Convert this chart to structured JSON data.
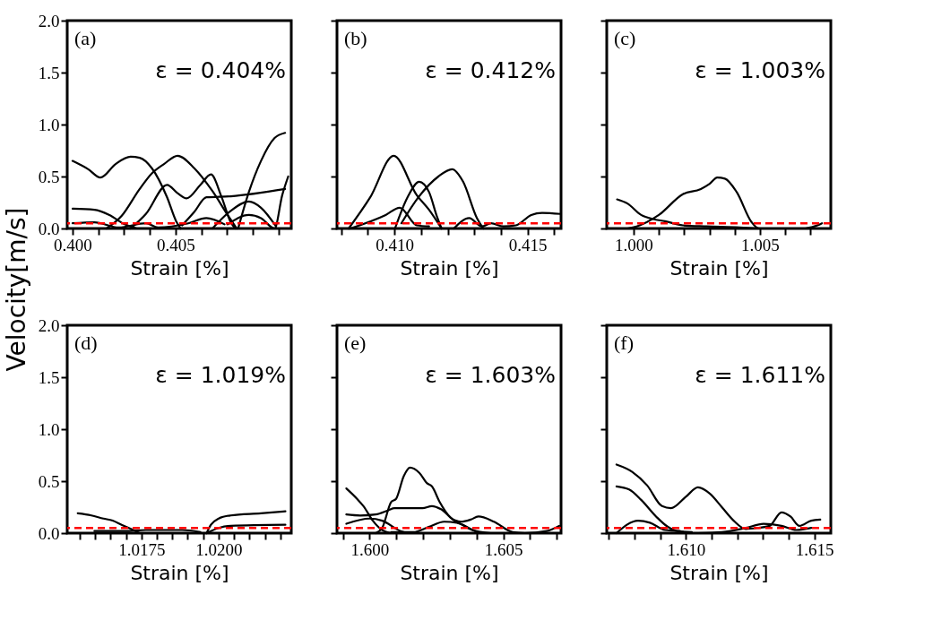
{
  "chart_data": [
    {
      "type": "line",
      "xlabel": "Strain [%]",
      "ylabel": "Velocity[m/s]",
      "annotations": [
        "(a)",
        "ε = 0.404%"
      ],
      "xlim": [
        0.39974,
        0.41062
      ],
      "ylim": [
        0,
        2.0
      ],
      "xticks": [
        {
          "value": 0.4,
          "label": "0.400"
        },
        {
          "value": 0.40125,
          "label": null
        },
        {
          "value": 0.4025,
          "label": null
        },
        {
          "value": 0.40375,
          "label": null
        },
        {
          "value": 0.405,
          "label": "0.405"
        },
        {
          "value": 0.40625,
          "label": null
        },
        {
          "value": 0.4075,
          "label": null
        },
        {
          "value": 0.40875,
          "label": null
        },
        {
          "value": 0.41,
          "label": null
        }
      ],
      "yticks": [
        {
          "value": 0,
          "label": "0.0"
        },
        {
          "value": 0.5,
          "label": "0.5"
        },
        {
          "value": 1.0,
          "label": "1.0"
        },
        {
          "value": 1.5,
          "label": "1.5"
        },
        {
          "value": 2.0,
          "label": "2.0"
        }
      ],
      "ref_lines": [
        {
          "axis": "y",
          "value": 0.05,
          "color": "#ff0000",
          "line_style": "dashed"
        }
      ],
      "series": [
        {
          "color": "#000000",
          "x": [
            0.4,
            0.40076,
            0.40135,
            0.40209,
            0.40282,
            0.40326,
            0.40385,
            0.40459,
            0.40503,
            0.40525
          ],
          "values": [
            0.65,
            0.57,
            0.49,
            0.62,
            0.69,
            0.68,
            0.58,
            0.3,
            0.07,
            0.0
          ]
        },
        {
          "color": "#000000",
          "x": [
            0.40165,
            0.40238,
            0.40326,
            0.40385,
            0.40444,
            0.4051,
            0.40591,
            0.40679,
            0.40753,
            0.40797
          ],
          "values": [
            0.0,
            0.12,
            0.38,
            0.53,
            0.62,
            0.7,
            0.58,
            0.36,
            0.13,
            0.0
          ]
        },
        {
          "color": "#000000",
          "x": [
            0.40282,
            0.40356,
            0.40459,
            0.4051,
            0.40554,
            0.40621,
            0.40672,
            0.40724,
            0.40768,
            0.4079
          ],
          "values": [
            0.0,
            0.14,
            0.42,
            0.34,
            0.29,
            0.42,
            0.52,
            0.3,
            0.06,
            0.0
          ]
        },
        {
          "color": "#000000",
          "x": [
            0.40804,
            0.40856,
            0.40915,
            0.40981,
            0.41032
          ],
          "values": [
            0.0,
            0.35,
            0.65,
            0.87,
            0.92
          ]
        },
        {
          "color": "#000000",
          "x": [
            0.40532,
            0.40591,
            0.4065,
            0.40768,
            0.41032
          ],
          "values": [
            0.03,
            0.16,
            0.3,
            0.31,
            0.38
          ]
        },
        {
          "color": "#000000",
          "x": [
            0.4,
            0.40106,
            0.40179,
            0.40253,
            0.40312
          ],
          "values": [
            0.19,
            0.18,
            0.13,
            0.04,
            0.0
          ]
        },
        {
          "color": "#000000",
          "x": [
            0.40679,
            0.40768,
            0.40856,
            0.40915,
            0.40988
          ],
          "values": [
            0.0,
            0.17,
            0.26,
            0.2,
            0.02
          ]
        },
        {
          "color": "#000000",
          "x": [
            0.40753,
            0.40856,
            0.40915,
            0.40981,
            0.41018,
            0.41047
          ],
          "values": [
            0.04,
            0.13,
            0.1,
            0.0,
            0.32,
            0.5
          ]
        },
        {
          "color": "#000000",
          "x": [
            0.4,
            0.40106,
            0.40224,
            0.40356,
            0.40415,
            0.40562,
            0.4065,
            0.40738
          ],
          "values": [
            0.05,
            0.06,
            0.01,
            0.05,
            0.01,
            0.05,
            0.1,
            0.04
          ]
        }
      ]
    },
    {
      "type": "line",
      "xlabel": "Strain [%]",
      "annotations": [
        "(b)",
        "ε = 0.412%"
      ],
      "tick_labels": "x",
      "xlim": [
        0.40784,
        0.41626
      ],
      "ylim": [
        0,
        2.0
      ],
      "xticks": [
        {
          "value": 0.408,
          "label": null
        },
        {
          "value": 0.409,
          "label": null
        },
        {
          "value": 0.41,
          "label": "0.410"
        },
        {
          "value": 0.411,
          "label": null
        },
        {
          "value": 0.412,
          "label": null
        },
        {
          "value": 0.413,
          "label": null
        },
        {
          "value": 0.414,
          "label": null
        },
        {
          "value": 0.415,
          "label": "0.415"
        },
        {
          "value": 0.416,
          "label": null
        }
      ],
      "yticks": [
        {
          "value": 0,
          "label": null
        },
        {
          "value": 0.5,
          "label": null
        },
        {
          "value": 1.0,
          "label": null
        },
        {
          "value": 1.5,
          "label": null
        },
        {
          "value": 2.0,
          "label": null
        }
      ],
      "ref_lines": [
        {
          "axis": "y",
          "value": 0.05,
          "color": "#ff0000",
          "line_style": "dashed"
        }
      ],
      "series": [
        {
          "color": "#000000",
          "x": [
            0.40828,
            0.40909,
            0.40997,
            0.41084,
            0.4113,
            0.41177
          ],
          "values": [
            0.0,
            0.3,
            0.7,
            0.32,
            0.18,
            0.0
          ]
        },
        {
          "color": "#000000",
          "x": [
            0.41002,
            0.41049,
            0.41093,
            0.4113,
            0.41159,
            0.41177
          ],
          "values": [
            0.0,
            0.3,
            0.45,
            0.35,
            0.12,
            0.0
          ]
        },
        {
          "color": "#000000",
          "x": [
            0.41026,
            0.4109,
            0.41165,
            0.41217,
            0.41258,
            0.4131,
            0.41334
          ],
          "values": [
            0.05,
            0.3,
            0.5,
            0.57,
            0.45,
            0.1,
            0.0
          ]
        },
        {
          "color": "#000000",
          "x": [
            0.40834,
            0.40967,
            0.4102,
            0.41084,
            0.4113
          ],
          "values": [
            0.0,
            0.13,
            0.2,
            0.03,
            0.02
          ]
        },
        {
          "color": "#000000",
          "x": [
            0.41223,
            0.41281,
            0.41328,
            0.41363,
            0.41409,
            0.41456,
            0.41514,
            0.41555,
            0.41624
          ],
          "values": [
            0.0,
            0.1,
            0.02,
            0.05,
            0.02,
            0.03,
            0.13,
            0.15,
            0.14
          ]
        }
      ]
    },
    {
      "type": "line",
      "xlabel": "Strain [%]",
      "annotations": [
        "(c)",
        "ε = 1.003%"
      ],
      "tick_labels": "x",
      "xlim": [
        0.99894,
        1.0078
      ],
      "ylim": [
        0,
        2.0
      ],
      "xticks": [
        {
          "value": 1.0,
          "label": "1.000"
        },
        {
          "value": 1.001,
          "label": null
        },
        {
          "value": 1.002,
          "label": null
        },
        {
          "value": 1.003,
          "label": null
        },
        {
          "value": 1.004,
          "label": null
        },
        {
          "value": 1.005,
          "label": "1.005"
        },
        {
          "value": 1.006,
          "label": null
        },
        {
          "value": 1.007,
          "label": null
        }
      ],
      "yticks": [
        {
          "value": 0,
          "label": null
        },
        {
          "value": 0.5,
          "label": null
        },
        {
          "value": 1.0,
          "label": null
        },
        {
          "value": 1.5,
          "label": null
        },
        {
          "value": 2.0,
          "label": null
        }
      ],
      "ref_lines": [
        {
          "axis": "y",
          "value": 0.05,
          "color": "#ff0000",
          "line_style": "dashed"
        }
      ],
      "series": [
        {
          "color": "#000000",
          "x": [
            0.99935,
            0.99976,
            1.0003,
            1.00077,
            1.00124,
            1.00195,
            1.0029,
            1.0042,
            1.00491
          ],
          "values": [
            0.28,
            0.24,
            0.13,
            0.09,
            0.07,
            0.03,
            0.02,
            0.01,
            0.0
          ]
        },
        {
          "color": "#000000",
          "x": [
            0.99976,
            1.00012,
            1.001,
            1.00195,
            1.00266,
            1.00301,
            1.00331,
            1.00361,
            1.00408,
            1.00467,
            1.00496,
            1.00585
          ],
          "values": [
            0.0,
            0.02,
            0.13,
            0.33,
            0.38,
            0.43,
            0.49,
            0.48,
            0.35,
            0.06,
            0.0,
            0.0
          ]
        },
        {
          "color": "#000000",
          "x": [
            1.0068,
            1.00727,
            1.00745
          ],
          "values": [
            0.0,
            0.03,
            0.05
          ]
        }
      ]
    },
    {
      "type": "line",
      "xlabel": "Strain [%]",
      "annotations": [
        "(d)",
        "ε = 1.019%"
      ],
      "xlim": [
        1.0151,
        1.02235
      ],
      "ylim": [
        0,
        2.0
      ],
      "xticks": [
        {
          "value": 1.0155,
          "label": null
        },
        {
          "value": 1.016,
          "label": null
        },
        {
          "value": 1.0165,
          "label": null
        },
        {
          "value": 1.017,
          "label": null
        },
        {
          "value": 1.0175,
          "label": "1.0175"
        },
        {
          "value": 1.018,
          "label": null
        },
        {
          "value": 1.0185,
          "label": null
        },
        {
          "value": 1.019,
          "label": null
        },
        {
          "value": 1.0195,
          "label": null
        },
        {
          "value": 1.02,
          "label": "1.0200"
        },
        {
          "value": 1.0205,
          "label": null
        },
        {
          "value": 1.021,
          "label": null
        },
        {
          "value": 1.0215,
          "label": null
        },
        {
          "value": 1.022,
          "label": null
        }
      ],
      "yticks": [
        {
          "value": 0,
          "label": "0.0"
        },
        {
          "value": 0.5,
          "label": "0.5"
        },
        {
          "value": 1.0,
          "label": "1.0"
        },
        {
          "value": 1.5,
          "label": "1.5"
        },
        {
          "value": 2.0,
          "label": "2.0"
        }
      ],
      "ref_lines": [
        {
          "axis": "y",
          "value": 0.05,
          "color": "#ff0000",
          "line_style": "dashed"
        }
      ],
      "series": [
        {
          "color": "#000000",
          "x": [
            1.01544,
            1.01588,
            1.01627,
            1.01657,
            1.01686,
            1.01716,
            1.01745
          ],
          "values": [
            0.19,
            0.17,
            0.14,
            0.12,
            0.08,
            0.04,
            0.0
          ]
        },
        {
          "color": "#000000",
          "x": [
            1.01961,
            1.01975,
            1.02,
            1.02039,
            1.02137,
            1.02216
          ],
          "values": [
            0.0,
            0.08,
            0.14,
            0.17,
            0.19,
            0.21
          ]
        },
        {
          "color": "#000000",
          "x": [
            1.01961,
            1.02,
            1.02039,
            1.02216
          ],
          "values": [
            0.0,
            0.05,
            0.07,
            0.08
          ]
        },
        {
          "color": "#000000",
          "x": [
            1.01598,
            1.01696,
            1.01765,
            1.01882,
            1.01941
          ],
          "values": [
            0.02,
            0.02,
            0.03,
            0.03,
            0.01
          ]
        }
      ]
    },
    {
      "type": "line",
      "xlabel": "Strain [%]",
      "annotations": [
        "(e)",
        "ε = 1.603%"
      ],
      "tick_labels": "x",
      "xlim": [
        1.59878,
        1.60716
      ],
      "ylim": [
        0,
        2.0
      ],
      "xticks": [
        {
          "value": 1.599,
          "label": null
        },
        {
          "value": 1.6,
          "label": "1.600"
        },
        {
          "value": 1.601,
          "label": null
        },
        {
          "value": 1.602,
          "label": null
        },
        {
          "value": 1.603,
          "label": null
        },
        {
          "value": 1.604,
          "label": null
        },
        {
          "value": 1.605,
          "label": "1.605"
        },
        {
          "value": 1.606,
          "label": null
        },
        {
          "value": 1.607,
          "label": null
        }
      ],
      "yticks": [
        {
          "value": 0,
          "label": null
        },
        {
          "value": 0.5,
          "label": null
        },
        {
          "value": 1.0,
          "label": null
        },
        {
          "value": 1.5,
          "label": null
        },
        {
          "value": 2.0,
          "label": null
        }
      ],
      "ref_lines": [
        {
          "axis": "y",
          "value": 0.05,
          "color": "#ff0000",
          "line_style": "dashed"
        }
      ],
      "series": [
        {
          "color": "#000000",
          "x": [
            1.59913,
            1.59953,
            1.59977,
            1.60012,
            1.60047,
            1.60081
          ],
          "values": [
            0.43,
            0.33,
            0.26,
            0.12,
            0.03,
            0.0
          ]
        },
        {
          "color": "#000000",
          "x": [
            1.60023,
            1.60047,
            1.60081,
            1.60099,
            1.60128,
            1.60151,
            1.60186,
            1.60215,
            1.60233,
            1.60262,
            1.60302,
            1.60349,
            1.60401
          ],
          "values": [
            0.0,
            0.05,
            0.3,
            0.33,
            0.55,
            0.63,
            0.58,
            0.48,
            0.45,
            0.3,
            0.15,
            0.08,
            0.01
          ]
        },
        {
          "color": "#000000",
          "x": [
            1.59913,
            1.59965,
            1.60023,
            1.6007,
            1.60093,
            1.60198,
            1.60233,
            1.60267,
            1.60314,
            1.60343,
            1.60378,
            1.60407,
            1.60465,
            1.60535,
            1.60581,
            1.60663,
            1.60709
          ],
          "values": [
            0.18,
            0.17,
            0.18,
            0.22,
            0.24,
            0.24,
            0.26,
            0.23,
            0.13,
            0.11,
            0.13,
            0.16,
            0.11,
            0.01,
            0.0,
            0.02,
            0.07
          ]
        },
        {
          "color": "#000000",
          "x": [
            1.59913,
            1.6,
            1.60047,
            1.60116,
            1.60151
          ],
          "values": [
            0.09,
            0.14,
            0.12,
            0.02,
            0.0
          ]
        },
        {
          "color": "#000000",
          "x": [
            1.60081,
            1.60163,
            1.60221,
            1.60279,
            1.60326,
            1.60384,
            1.60453
          ],
          "values": [
            0.01,
            0.01,
            0.06,
            0.11,
            0.1,
            0.03,
            0.0
          ]
        }
      ]
    },
    {
      "type": "line",
      "xlabel": "Strain [%]",
      "annotations": [
        "(f)",
        "ε = 1.611%"
      ],
      "tick_labels": "x",
      "xlim": [
        1.60692,
        1.61564
      ],
      "ylim": [
        0,
        2.0
      ],
      "xticks": [
        {
          "value": 1.607,
          "label": null
        },
        {
          "value": 1.608,
          "label": null
        },
        {
          "value": 1.609,
          "label": null
        },
        {
          "value": 1.61,
          "label": "1.610"
        },
        {
          "value": 1.611,
          "label": null
        },
        {
          "value": 1.612,
          "label": null
        },
        {
          "value": 1.613,
          "label": null
        },
        {
          "value": 1.614,
          "label": null
        },
        {
          "value": 1.615,
          "label": "1.615"
        }
      ],
      "yticks": [
        {
          "value": 0,
          "label": null
        },
        {
          "value": 0.5,
          "label": null
        },
        {
          "value": 1.0,
          "label": null
        },
        {
          "value": 1.5,
          "label": null
        },
        {
          "value": 2.0,
          "label": null
        }
      ],
      "ref_lines": [
        {
          "axis": "y",
          "value": 0.05,
          "color": "#ff0000",
          "line_style": "dashed"
        }
      ],
      "series": [
        {
          "color": "#000000",
          "x": [
            1.6073,
            1.60791,
            1.60849,
            1.60907,
            1.60942,
            1.61,
            1.61047,
            1.61093,
            1.6114,
            1.61186,
            1.61233,
            1.61279,
            1.61326,
            1.61372,
            1.61407,
            1.61442,
            1.61488,
            1.61523
          ],
          "values": [
            0.66,
            0.59,
            0.46,
            0.26,
            0.24,
            0.35,
            0.44,
            0.38,
            0.25,
            0.12,
            0.04,
            0.05,
            0.07,
            0.2,
            0.16,
            0.07,
            0.12,
            0.13
          ]
        },
        {
          "color": "#000000",
          "x": [
            1.6073,
            1.60779,
            1.60826,
            1.60884,
            1.6093,
            1.60965,
            1.61023
          ],
          "values": [
            0.45,
            0.42,
            0.32,
            0.16,
            0.06,
            0.02,
            0.01
          ]
        },
        {
          "color": "#000000",
          "x": [
            1.6073,
            1.60814,
            1.6086,
            1.60919,
            1.60977
          ],
          "values": [
            0.0,
            0.12,
            0.1,
            0.03,
            0.02
          ]
        },
        {
          "color": "#000000",
          "x": [
            1.61047,
            1.6114,
            1.61233,
            1.61302,
            1.61372,
            1.6143,
            1.61488
          ],
          "values": [
            0.0,
            0.01,
            0.05,
            0.09,
            0.07,
            0.03,
            0.05
          ]
        }
      ]
    }
  ]
}
